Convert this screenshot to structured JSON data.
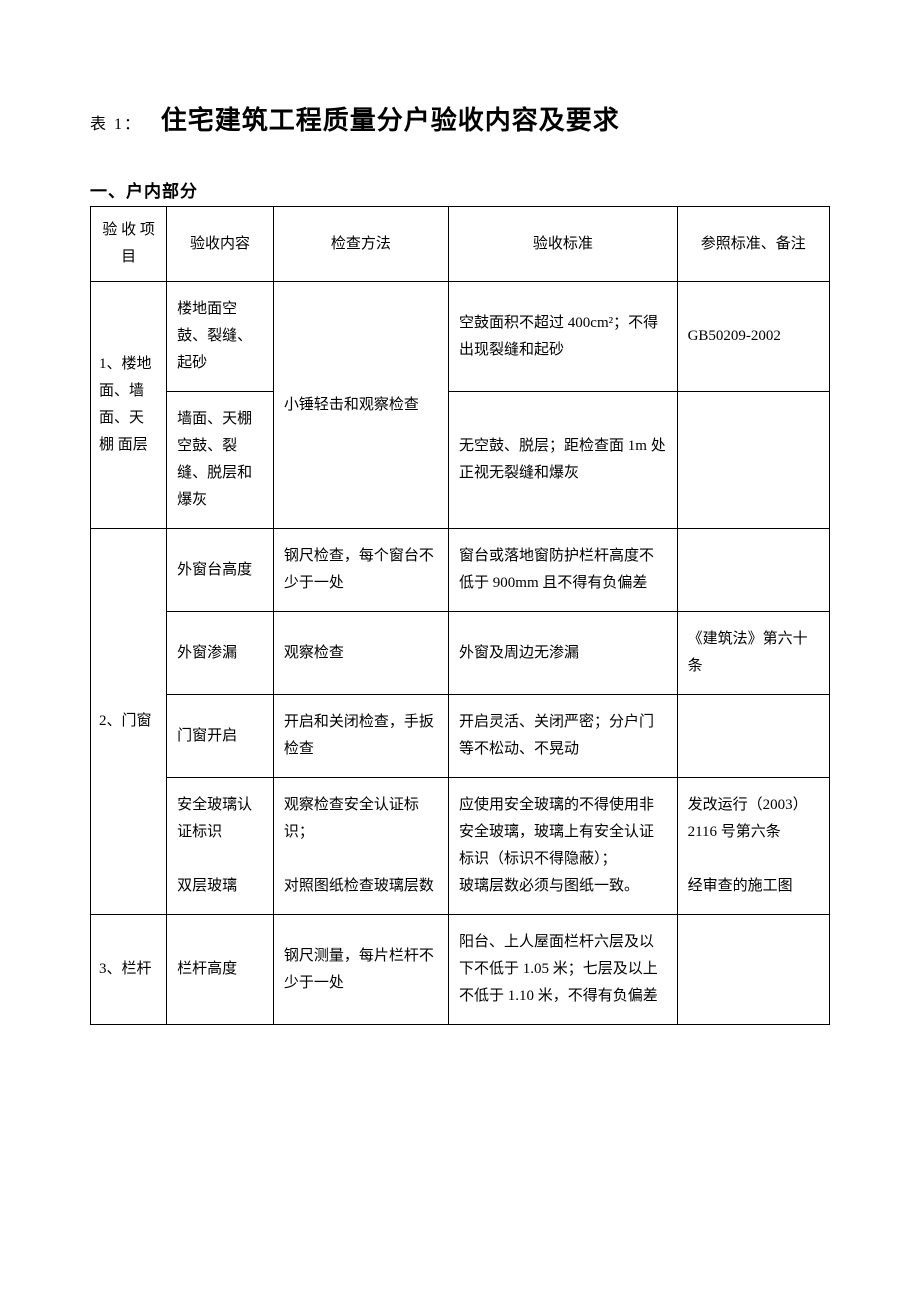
{
  "title_prefix": "表 1：",
  "title_main": "住宅建筑工程质量分户验收内容及要求",
  "section_title": "一、户内部分",
  "headers": {
    "item": "验 收 项 目",
    "content": "验收内容",
    "method": "检查方法",
    "standard": "验收标准",
    "ref": "参照标准、备注"
  },
  "rows": {
    "r1": {
      "item": "1、楼地面、墙面、天 棚 面层",
      "content_a": "楼地面空鼓、裂缝、起砂",
      "content_b": "墙面、天棚空鼓、裂缝、脱层和爆灰",
      "method": "小锤轻击和观察检查",
      "standard_a": "空鼓面积不超过 400cm²；不得出现裂缝和起砂",
      "standard_b": "无空鼓、脱层；距检查面 1m 处正视无裂缝和爆灰",
      "ref_a": "GB50209-2002",
      "ref_b": ""
    },
    "r2": {
      "item": "2、门窗",
      "sub1": {
        "content": "外窗台高度",
        "method": "钢尺检查，每个窗台不少于一处",
        "standard": "窗台或落地窗防护栏杆高度不低于 900mm 且不得有负偏差",
        "ref": ""
      },
      "sub2": {
        "content": "外窗渗漏",
        "method": "观察检查",
        "standard": "外窗及周边无渗漏",
        "ref": "《建筑法》第六十条"
      },
      "sub3": {
        "content": "门窗开启",
        "method": "开启和关闭检查，手扳检查",
        "standard": "开启灵活、关闭严密；分户门等不松动、不晃动",
        "ref": ""
      },
      "sub4": {
        "content": "安全玻璃认证标识\n\n双层玻璃",
        "method": "观察检查安全认证标识；\n\n对照图纸检查玻璃层数",
        "standard": "应使用安全玻璃的不得使用非安全玻璃，玻璃上有安全认证标识（标识不得隐蔽）；\n玻璃层数必须与图纸一致。",
        "ref": "发改运行（2003）2116 号第六条\n\n经审查的施工图"
      }
    },
    "r3": {
      "item": "3、栏杆",
      "content": "栏杆高度",
      "method": "钢尺测量，每片栏杆不少于一处",
      "standard": "阳台、上人屋面栏杆六层及以下不低于 1.05 米；七层及以上不低于 1.10 米，不得有负偏差",
      "ref": ""
    }
  },
  "styling": {
    "page_bg": "#ffffff",
    "text_color": "#000000",
    "border_color": "#000000",
    "font_family": "SimSun",
    "title_fontsize": 26,
    "body_fontsize": 15,
    "line_height": 1.8
  }
}
